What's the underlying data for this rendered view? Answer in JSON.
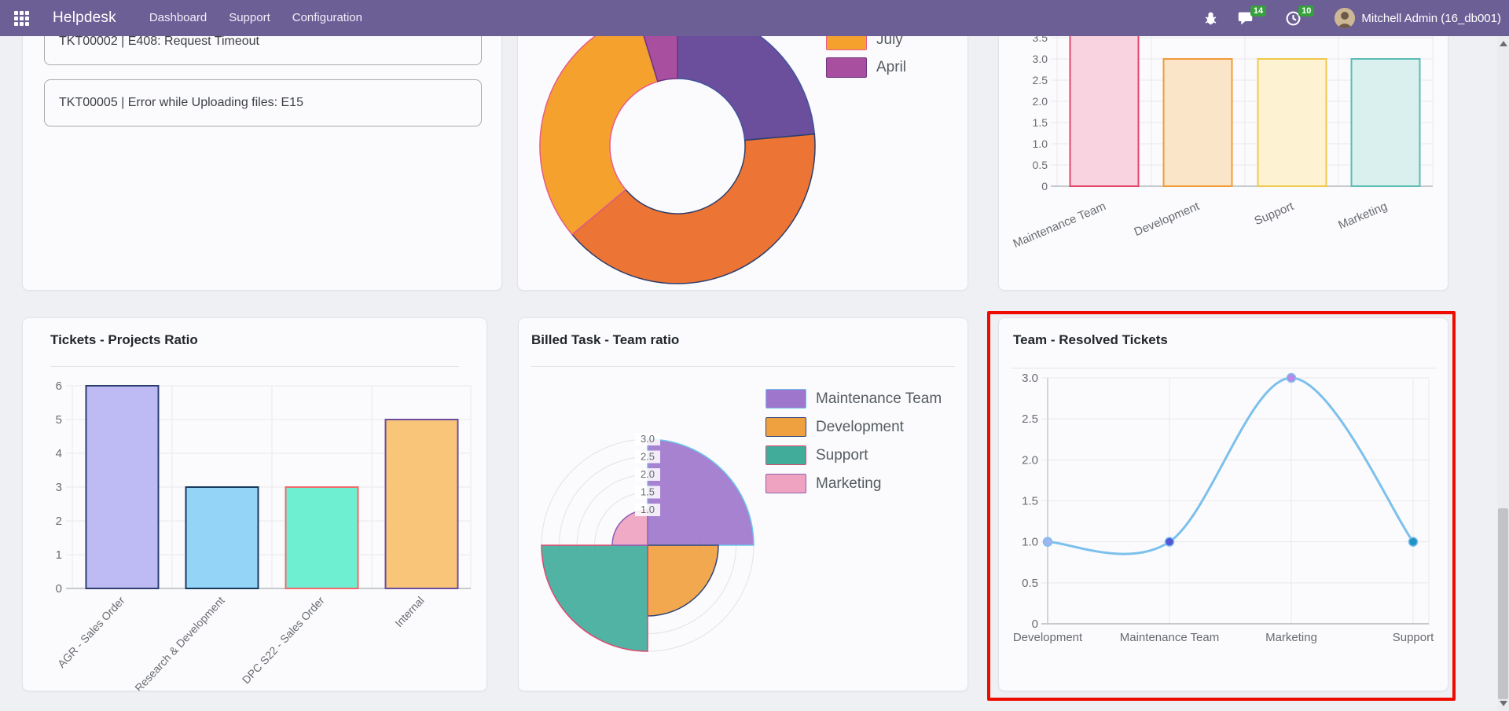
{
  "navbar": {
    "app_name": "Helpdesk",
    "menu_items": [
      "Dashboard",
      "Support",
      "Configuration"
    ],
    "message_badge": "14",
    "activity_badge": "10",
    "user_name": "Mitchell Admin (16_db001)",
    "bar_color": "#6C5F96",
    "badge_color": "#35a03c"
  },
  "ticket_list": {
    "items": [
      "TKT00002 | E408: Request Timeout",
      "TKT00005 | Error while Uploading files: E15"
    ]
  },
  "annotation": {
    "type": "highlight-box",
    "target": "Team - Resolved Tickets card",
    "color": "#ee0b00"
  },
  "chart_data": [
    {
      "id": "tickets-donut",
      "type": "pie",
      "legend_position": "right",
      "visible_legend": [
        "July",
        "April"
      ],
      "slices": [
        {
          "label": "",
          "angle_deg": 85,
          "color": "#6b4e9c",
          "border": "#41549e"
        },
        {
          "label": "",
          "angle_deg": 145,
          "color": "#ec7434",
          "border": "#2d3e6b"
        },
        {
          "label": "July",
          "angle_deg": 113,
          "color": "#f4a12e",
          "border": "#e85c8a"
        },
        {
          "label": "April",
          "angle_deg": 17,
          "color": "#a84f9f",
          "border": "#6d3580"
        }
      ]
    },
    {
      "id": "team-open-bar",
      "type": "bar",
      "categories": [
        "Maintenance Team",
        "Development",
        "Support",
        "Marketing"
      ],
      "values": [
        4,
        3,
        3,
        3
      ],
      "fills": [
        "#f9d3e0",
        "#fbe5c8",
        "#fdf3d2",
        "#d9f0ee"
      ],
      "strokes": [
        "#e3476d",
        "#f29b38",
        "#f0c84b",
        "#5bbcb4"
      ],
      "ylim": [
        0,
        3.5
      ],
      "ystep": 0.5
    },
    {
      "id": "tickets-projects-ratio",
      "type": "bar",
      "title": "Tickets - Projects Ratio",
      "categories": [
        "AGR - Sales Order",
        "Research & Development",
        "DPC S22 - Sales Order",
        "Internal"
      ],
      "values": [
        6,
        3,
        3,
        5
      ],
      "fills": [
        "#bdbaf4",
        "#93d4f7",
        "#6fefd2",
        "#f8c579"
      ],
      "strokes": [
        "#2c3e70",
        "#173a5e",
        "#ef6a6a",
        "#6d4d9e"
      ],
      "ylim": [
        0,
        6
      ],
      "ystep": 1
    },
    {
      "id": "billed-task-team-ratio",
      "type": "polarArea",
      "title": "Billed Task - Team ratio",
      "categories": [
        "Maintenance Team",
        "Development",
        "Support",
        "Marketing"
      ],
      "values": [
        3,
        2,
        3,
        1
      ],
      "fills": [
        "#9e77cd",
        "#f0a13f",
        "#42ac9b",
        "#f0a3c0"
      ],
      "strokes": [
        "#6ec3f0",
        "#31477c",
        "#e3476d",
        "#8e5fb5"
      ],
      "rlim": [
        0,
        3
      ],
      "rstep": 0.5,
      "rtick_labels": [
        "1.0",
        "1.5",
        "2.0",
        "2.5",
        "3.0"
      ]
    },
    {
      "id": "team-resolved-tickets",
      "type": "line",
      "title": "Team - Resolved Tickets",
      "categories": [
        "Development",
        "Maintenance Team",
        "Marketing",
        "Support"
      ],
      "values": [
        1,
        1,
        3,
        1
      ],
      "line_color": "#7cc0ec",
      "point_colors": [
        "#9fb5f0",
        "#5156d6",
        "#b78ae8",
        "#1f93c4"
      ],
      "ylim": [
        0,
        3
      ],
      "ystep": 0.5
    }
  ]
}
